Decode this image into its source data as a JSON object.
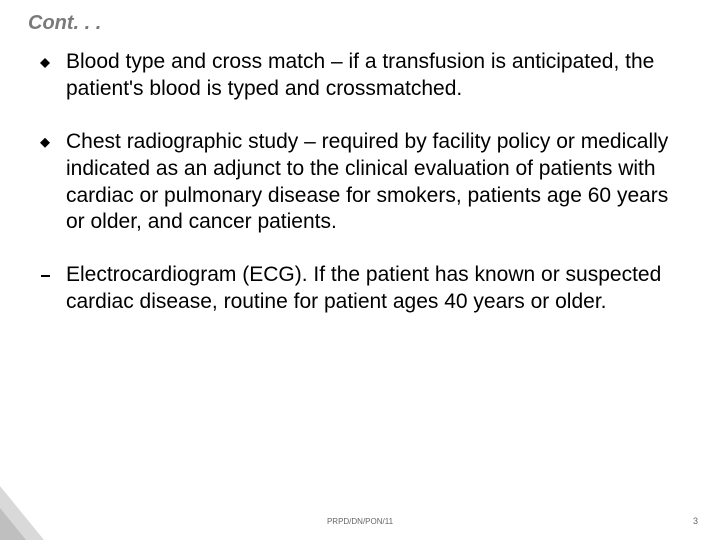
{
  "slide": {
    "title": "Cont. . .",
    "bullets": [
      "Blood type and cross match – if a transfusion is anticipated, the patient's blood is typed and crossmatched.",
      "Chest radiographic study – required by facility policy or medically indicated as an adjunct to the clinical evaluation of patients with cardiac or pulmonary disease for smokers, patients age 60 years or older, and cancer patients.",
      "Electrocardiogram (ECG). If the patient has known or suspected cardiac disease, routine for patient ages 40 years or older."
    ],
    "footer_ref": "PRPD/DN/PON/11",
    "page_number": "3"
  },
  "colors": {
    "title_color": "#7a7a7a",
    "body_color": "#000000",
    "footer_color": "#666666",
    "background": "#ffffff",
    "accent_light": "#d9d9d9",
    "accent_dark": "#bfbfbf"
  },
  "typography": {
    "title_fontsize": 20,
    "body_fontsize": 21,
    "footer_fontsize": 8,
    "font_family": "Verdana"
  }
}
